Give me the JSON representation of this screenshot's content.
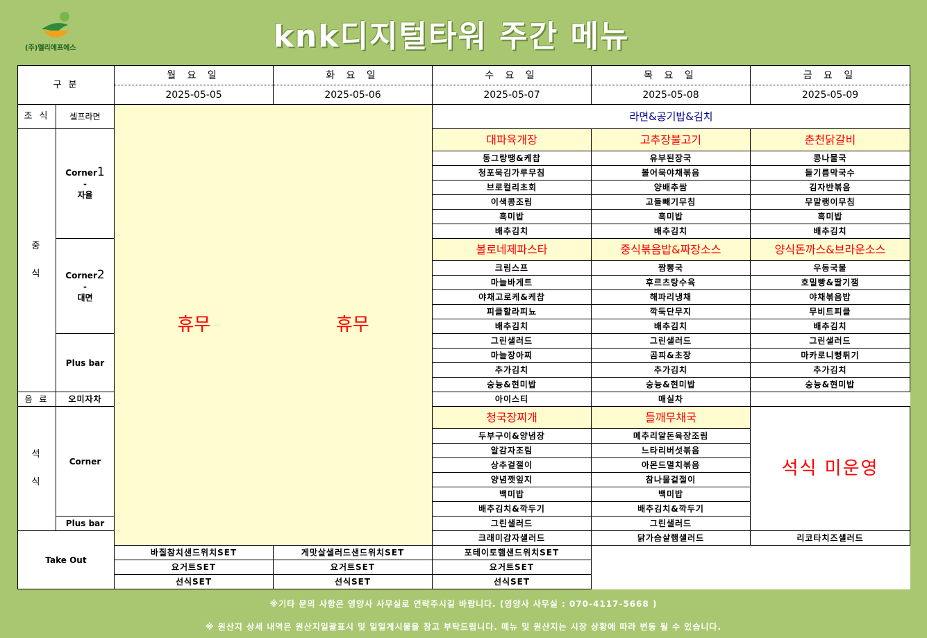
{
  "company": "(주)델리에프에스",
  "title": "knk디지털타워 주간 메뉴",
  "header": {
    "category": "구 분",
    "days": [
      "월 요 일",
      "화 요 일",
      "수 요 일",
      "목 요 일",
      "금 요 일"
    ],
    "dates": [
      "2025-05-05",
      "2025-05-06",
      "2025-05-07",
      "2025-05-08",
      "2025-05-09"
    ]
  },
  "breakfast": {
    "label": "조 식",
    "sub": "셀프라면",
    "menu": "라면&공기밥&김치"
  },
  "holiday": [
    "휴무",
    "휴무"
  ],
  "lunch": {
    "label_top": "중",
    "label_bottom": "식",
    "corner1": {
      "label_top": "Corner",
      "num": "1",
      "dash": "-",
      "label_bottom": "자율",
      "dishes": [
        "대파육개장",
        "고추장불고기",
        "춘천닭갈비"
      ],
      "items": [
        [
          "동그랑땡&케찹",
          "유부된장국",
          "콩나물국"
        ],
        [
          "청포묵김가루무침",
          "볼어묵야채볶음",
          "들기름막국수"
        ],
        [
          "브로컬리초회",
          "양배추쌈",
          "김자반볶음"
        ],
        [
          "이색콩조림",
          "고들빼기무침",
          "무말랭이무침"
        ],
        [
          "흑미밥",
          "흑미밥",
          "흑미밥"
        ],
        [
          "배추김치",
          "배추김치",
          "배추김치"
        ]
      ]
    },
    "corner2": {
      "label_top": "Corner",
      "num": "2",
      "dash": "-",
      "label_bottom": "대면",
      "dishes": [
        "볼로네제파스타",
        "중식볶음밥&짜장소스",
        "양식돈까스&브라운소스"
      ],
      "items": [
        [
          "크림스프",
          "짬뽕국",
          "우동국물"
        ],
        [
          "마늘바게트",
          "후르츠탕수육",
          "호밀빵&딸기잼"
        ],
        [
          "야채고로케&케찹",
          "해파리냉채",
          "야채볶음밥"
        ],
        [
          "피클할라피뇨",
          "깍둑단무지",
          "무비트피클"
        ],
        [
          "배추김치",
          "배추김치",
          "배추김치"
        ]
      ]
    },
    "plusbar": {
      "label": "Plus bar",
      "items": [
        [
          "그린샐러드",
          "그린샐러드",
          "그린샐러드"
        ],
        [
          "마늘장아찌",
          "곰피&초장",
          "마카로니뻥튀기"
        ],
        [
          "추가김치",
          "추가김치",
          "추가김치"
        ],
        [
          "숭늉&현미밥",
          "숭늉&현미밥",
          "숭늉&현미밥"
        ]
      ]
    },
    "drink": {
      "label": "음 료",
      "items": [
        "오미자차",
        "아이스티",
        "매실차"
      ]
    }
  },
  "dinner": {
    "label_top": "석",
    "label_bottom": "식",
    "corner": {
      "label": "Corner",
      "dishes": [
        "청국장찌개",
        "들깨무채국"
      ],
      "items": [
        [
          "두부구이&양념장",
          "메추리알돈육장조림"
        ],
        [
          "알감자조림",
          "느타리버섯볶음"
        ],
        [
          "상추겉절이",
          "아몬드멸치볶음"
        ],
        [
          "양념깻잎지",
          "참나물겉절이"
        ],
        [
          "백미밥",
          "백미밥"
        ],
        [
          "배추김치&깍두기",
          "배추김치&깍두기"
        ]
      ]
    },
    "plusbar": {
      "label": "Plus bar",
      "items": [
        "그린샐러드",
        "그린샐러드"
      ]
    },
    "closed": "석식 미운영"
  },
  "takeout": {
    "label": "Take Out",
    "items": [
      [
        "크래미감자샐러드",
        "닭가슴살햄샐러드",
        "리코타치즈샐러드"
      ],
      [
        "바질참치샌드위치SET",
        "게맛살샐러드샌드위치SET",
        "포테이토햄샌드위치SET"
      ],
      [
        "요거트SET",
        "요거트SET",
        "요거트SET"
      ],
      [
        "선식SET",
        "선식SET",
        "선식SET"
      ]
    ]
  },
  "footer": {
    "line1": "※기타 문의 사항은 영양사 사무실로 연락주시길 바랍니다. (영양사 사무실 : 070-4117-5668 )",
    "line2": "※ 원산지 상세 내역은 원산지일괄표시 및 일일게시물을 참고 부탁드립니다. 메뉴 및 원산지는 시장 상황에 따라 변동 될 수 있습니다."
  }
}
